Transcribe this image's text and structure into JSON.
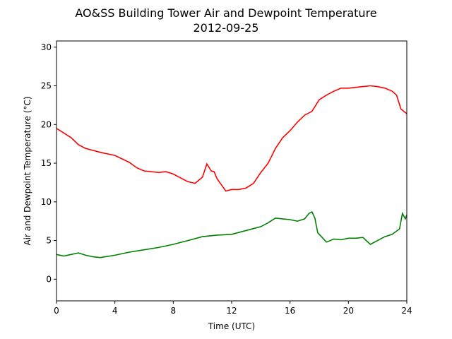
{
  "chart_data": {
    "type": "line",
    "title": "AO&SS Building Tower Air and Dewpoint Temperature",
    "subtitle": "2012-09-25",
    "xlabel": "Time (UTC)",
    "ylabel": "Air and Dewpoint Temperature (°C)",
    "xlim": [
      0,
      24
    ],
    "ylim": [
      -2.8,
      30.8
    ],
    "xticks": [
      0,
      4,
      8,
      12,
      16,
      20,
      24
    ],
    "yticks": [
      0,
      5,
      10,
      15,
      20,
      25,
      30
    ],
    "grid": false,
    "series": [
      {
        "color": "#ff0000",
        "x": [
          0,
          0.5,
          1,
          1.5,
          2,
          3,
          4,
          5,
          5.5,
          6,
          7,
          7.5,
          8,
          8.5,
          9,
          9.5,
          10,
          10.3,
          10.6,
          10.8,
          11,
          11.3,
          11.6,
          12,
          12.5,
          13,
          13.5,
          14,
          14.5,
          15,
          15.5,
          16,
          16.5,
          17,
          17.5,
          18,
          18.5,
          19,
          19.5,
          20,
          20.5,
          21,
          21.5,
          22,
          22.5,
          23,
          23.3,
          23.6,
          24
        ],
        "y": [
          19.5,
          18.9,
          18.3,
          17.4,
          16.9,
          16.4,
          16.0,
          15.1,
          14.4,
          14.0,
          13.8,
          13.9,
          13.6,
          13.1,
          12.6,
          12.4,
          13.2,
          14.9,
          14.0,
          13.9,
          13.0,
          12.2,
          11.4,
          11.6,
          11.6,
          11.8,
          12.4,
          13.8,
          15.0,
          16.9,
          18.3,
          19.2,
          20.3,
          21.2,
          21.7,
          23.2,
          23.8,
          24.3,
          24.7,
          24.7,
          24.8,
          24.9,
          25.0,
          24.9,
          24.7,
          24.3,
          23.8,
          22.0,
          21.4
        ]
      },
      {
        "color": "#008000",
        "x": [
          0,
          0.5,
          1,
          1.5,
          2,
          2.5,
          3,
          4,
          5,
          6,
          7,
          8,
          9,
          10,
          11,
          12,
          13,
          14,
          14.5,
          15,
          15.5,
          16,
          16.5,
          17,
          17.3,
          17.5,
          17.7,
          17.9,
          18,
          18.5,
          19,
          19.5,
          20,
          20.5,
          21,
          21.5,
          22,
          22.5,
          23,
          23.5,
          23.7,
          23.9,
          24
        ],
        "y": [
          3.2,
          3.0,
          3.2,
          3.4,
          3.1,
          2.9,
          2.8,
          3.1,
          3.5,
          3.8,
          4.1,
          4.5,
          5.0,
          5.5,
          5.7,
          5.8,
          6.3,
          6.8,
          7.3,
          7.9,
          7.8,
          7.7,
          7.5,
          7.8,
          8.5,
          8.7,
          7.9,
          6.0,
          5.8,
          4.8,
          5.2,
          5.1,
          5.3,
          5.3,
          5.4,
          4.5,
          5.0,
          5.5,
          5.8,
          6.5,
          8.5,
          7.8,
          8.3
        ]
      }
    ]
  }
}
